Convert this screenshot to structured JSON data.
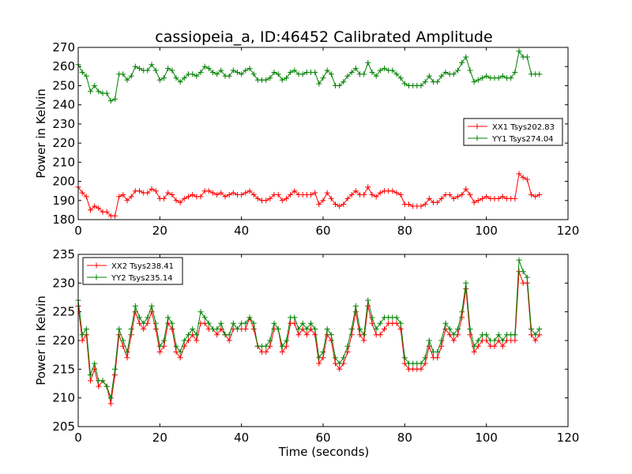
{
  "chart_data": [
    {
      "type": "line",
      "title": "cassiopeia_a, ID:46452 Calibrated Amplitude",
      "xlabel": "",
      "ylabel": "Power in Kelvin",
      "xlim": [
        0,
        120
      ],
      "ylim": [
        180,
        270
      ],
      "xticks": [
        "0",
        "20",
        "40",
        "60",
        "80",
        "100",
        "120"
      ],
      "yticks": [
        "180",
        "190",
        "200",
        "210",
        "220",
        "230",
        "240",
        "250",
        "260",
        "270"
      ],
      "legend_position": "center-right",
      "series": [
        {
          "name": "XX1 Tsys202.83",
          "color": "#ff0000",
          "marker": "plus",
          "x": [
            0,
            1,
            2,
            3,
            4,
            5,
            6,
            7,
            8,
            9,
            10,
            11,
            12,
            13,
            14,
            15,
            16,
            17,
            18,
            19,
            20,
            21,
            22,
            23,
            24,
            25,
            26,
            27,
            28,
            29,
            30,
            31,
            32,
            33,
            34,
            35,
            36,
            37,
            38,
            39,
            40,
            41,
            42,
            43,
            44,
            45,
            46,
            47,
            48,
            49,
            50,
            51,
            52,
            53,
            54,
            55,
            56,
            57,
            58,
            59,
            60,
            61,
            62,
            63,
            64,
            65,
            66,
            67,
            68,
            69,
            70,
            71,
            72,
            73,
            74,
            75,
            76,
            77,
            78,
            79,
            80,
            81,
            82,
            83,
            84,
            85,
            86,
            87,
            88,
            89,
            90,
            91,
            92,
            93,
            94,
            95,
            96,
            97,
            98,
            99,
            100,
            101,
            102,
            103,
            104,
            105,
            106,
            107,
            108,
            109,
            110,
            111,
            112,
            113
          ],
          "values": [
            197,
            194,
            192,
            185,
            187,
            186,
            184,
            184,
            182,
            182,
            192,
            193,
            190,
            192,
            195,
            195,
            194,
            194,
            196,
            195,
            191,
            191,
            194,
            193,
            190,
            189,
            191,
            192,
            193,
            192,
            192,
            195,
            195,
            194,
            193,
            194,
            192,
            193,
            194,
            193,
            193,
            194,
            195,
            193,
            191,
            190,
            190,
            191,
            193,
            193,
            190,
            191,
            193,
            195,
            193,
            193,
            193,
            193,
            194,
            188,
            190,
            194,
            191,
            188,
            187,
            188,
            191,
            193,
            195,
            193,
            193,
            197,
            193,
            192,
            194,
            195,
            195,
            195,
            194,
            193,
            188,
            188,
            187,
            187,
            187,
            188,
            191,
            189,
            189,
            191,
            193,
            193,
            191,
            192,
            193,
            196,
            193,
            189,
            190,
            191,
            192,
            191,
            191,
            191,
            192,
            191,
            191,
            191,
            204,
            202,
            201,
            193,
            192,
            193
          ]
        },
        {
          "name": "YY1 Tsys274.04",
          "color": "#008000",
          "marker": "plus",
          "x": [
            0,
            1,
            2,
            3,
            4,
            5,
            6,
            7,
            8,
            9,
            10,
            11,
            12,
            13,
            14,
            15,
            16,
            17,
            18,
            19,
            20,
            21,
            22,
            23,
            24,
            25,
            26,
            27,
            28,
            29,
            30,
            31,
            32,
            33,
            34,
            35,
            36,
            37,
            38,
            39,
            40,
            41,
            42,
            43,
            44,
            45,
            46,
            47,
            48,
            49,
            50,
            51,
            52,
            53,
            54,
            55,
            56,
            57,
            58,
            59,
            60,
            61,
            62,
            63,
            64,
            65,
            66,
            67,
            68,
            69,
            70,
            71,
            72,
            73,
            74,
            75,
            76,
            77,
            78,
            79,
            80,
            81,
            82,
            83,
            84,
            85,
            86,
            87,
            88,
            89,
            90,
            91,
            92,
            93,
            94,
            95,
            96,
            97,
            98,
            99,
            100,
            101,
            102,
            103,
            104,
            105,
            106,
            107,
            108,
            109,
            110,
            111,
            112,
            113
          ],
          "values": [
            261,
            257,
            255,
            247,
            250,
            247,
            246,
            246,
            242,
            243,
            256,
            256,
            253,
            255,
            260,
            259,
            258,
            258,
            261,
            258,
            253,
            254,
            259,
            258,
            254,
            252,
            254,
            256,
            256,
            255,
            257,
            260,
            259,
            257,
            256,
            258,
            255,
            255,
            258,
            257,
            256,
            258,
            259,
            256,
            253,
            253,
            253,
            254,
            257,
            256,
            253,
            254,
            257,
            258,
            256,
            256,
            257,
            257,
            257,
            251,
            254,
            258,
            256,
            250,
            250,
            252,
            255,
            257,
            259,
            256,
            256,
            262,
            257,
            255,
            258,
            259,
            258,
            258,
            256,
            254,
            251,
            250,
            250,
            250,
            250,
            252,
            255,
            252,
            252,
            255,
            257,
            256,
            256,
            258,
            262,
            265,
            258,
            252,
            253,
            254,
            255,
            254,
            254,
            254,
            255,
            254,
            254,
            257,
            268,
            265,
            265,
            256,
            256,
            256
          ]
        }
      ]
    },
    {
      "type": "line",
      "title": "",
      "xlabel": "Time (seconds)",
      "ylabel": "Power in Kelvin",
      "xlim": [
        0,
        120
      ],
      "ylim": [
        205,
        235
      ],
      "xticks": [
        "0",
        "20",
        "40",
        "60",
        "80",
        "100",
        "120"
      ],
      "yticks": [
        "205",
        "210",
        "215",
        "220",
        "225",
        "230",
        "235"
      ],
      "legend_position": "upper-left",
      "series": [
        {
          "name": "XX2 Tsys238.41",
          "color": "#ff0000",
          "marker": "plus",
          "x": [
            0,
            1,
            2,
            3,
            4,
            5,
            6,
            7,
            8,
            9,
            10,
            11,
            12,
            13,
            14,
            15,
            16,
            17,
            18,
            19,
            20,
            21,
            22,
            23,
            24,
            25,
            26,
            27,
            28,
            29,
            30,
            31,
            32,
            33,
            34,
            35,
            36,
            37,
            38,
            39,
            40,
            41,
            42,
            43,
            44,
            45,
            46,
            47,
            48,
            49,
            50,
            51,
            52,
            53,
            54,
            55,
            56,
            57,
            58,
            59,
            60,
            61,
            62,
            63,
            64,
            65,
            66,
            67,
            68,
            69,
            70,
            71,
            72,
            73,
            74,
            75,
            76,
            77,
            78,
            79,
            80,
            81,
            82,
            83,
            84,
            85,
            86,
            87,
            88,
            89,
            90,
            91,
            92,
            93,
            94,
            95,
            96,
            97,
            98,
            99,
            100,
            101,
            102,
            103,
            104,
            105,
            106,
            107,
            108,
            109,
            110,
            111,
            112,
            113
          ],
          "values": [
            226,
            220,
            221,
            213,
            215,
            212,
            213,
            212,
            209,
            214,
            221,
            219,
            217,
            221,
            225,
            223,
            222,
            223,
            225,
            222,
            218,
            219,
            223,
            222,
            218,
            217,
            219,
            220,
            221,
            220,
            223,
            223,
            222,
            222,
            221,
            222,
            221,
            220,
            222,
            222,
            222,
            222,
            224,
            222,
            219,
            218,
            218,
            219,
            222,
            222,
            218,
            219,
            223,
            223,
            221,
            222,
            221,
            222,
            221,
            216,
            217,
            221,
            220,
            216,
            215,
            216,
            218,
            221,
            225,
            221,
            220,
            226,
            223,
            221,
            221,
            222,
            223,
            223,
            223,
            222,
            216,
            215,
            215,
            215,
            215,
            216,
            219,
            217,
            217,
            219,
            222,
            221,
            220,
            221,
            224,
            229,
            221,
            218,
            219,
            220,
            220,
            219,
            219,
            220,
            219,
            220,
            220,
            220,
            232,
            230,
            230,
            221,
            220,
            221
          ]
        },
        {
          "name": "YY2 Tsys235.14",
          "color": "#008000",
          "marker": "plus",
          "x": [
            0,
            1,
            2,
            3,
            4,
            5,
            6,
            7,
            8,
            9,
            10,
            11,
            12,
            13,
            14,
            15,
            16,
            17,
            18,
            19,
            20,
            21,
            22,
            23,
            24,
            25,
            26,
            27,
            28,
            29,
            30,
            31,
            32,
            33,
            34,
            35,
            36,
            37,
            38,
            39,
            40,
            41,
            42,
            43,
            44,
            45,
            46,
            47,
            48,
            49,
            50,
            51,
            52,
            53,
            54,
            55,
            56,
            57,
            58,
            59,
            60,
            61,
            62,
            63,
            64,
            65,
            66,
            67,
            68,
            69,
            70,
            71,
            72,
            73,
            74,
            75,
            76,
            77,
            78,
            79,
            80,
            81,
            82,
            83,
            84,
            85,
            86,
            87,
            88,
            89,
            90,
            91,
            92,
            93,
            94,
            95,
            96,
            97,
            98,
            99,
            100,
            101,
            102,
            103,
            104,
            105,
            106,
            107,
            108,
            109,
            110,
            111,
            112,
            113
          ],
          "values": [
            227,
            221,
            222,
            214,
            216,
            213,
            213,
            212,
            210,
            215,
            222,
            220,
            218,
            222,
            226,
            224,
            223,
            224,
            226,
            223,
            219,
            220,
            224,
            223,
            219,
            218,
            220,
            221,
            222,
            221,
            225,
            224,
            223,
            222,
            222,
            223,
            221,
            221,
            223,
            222,
            223,
            223,
            224,
            223,
            219,
            219,
            219,
            220,
            223,
            222,
            219,
            220,
            224,
            224,
            222,
            223,
            222,
            223,
            222,
            217,
            218,
            222,
            221,
            217,
            216,
            217,
            219,
            222,
            226,
            222,
            221,
            227,
            224,
            222,
            223,
            224,
            224,
            224,
            224,
            223,
            217,
            216,
            216,
            216,
            216,
            217,
            220,
            218,
            218,
            220,
            223,
            222,
            221,
            222,
            225,
            230,
            222,
            219,
            220,
            221,
            221,
            220,
            220,
            221,
            220,
            221,
            221,
            221,
            234,
            232,
            231,
            222,
            221,
            222
          ]
        }
      ]
    }
  ]
}
